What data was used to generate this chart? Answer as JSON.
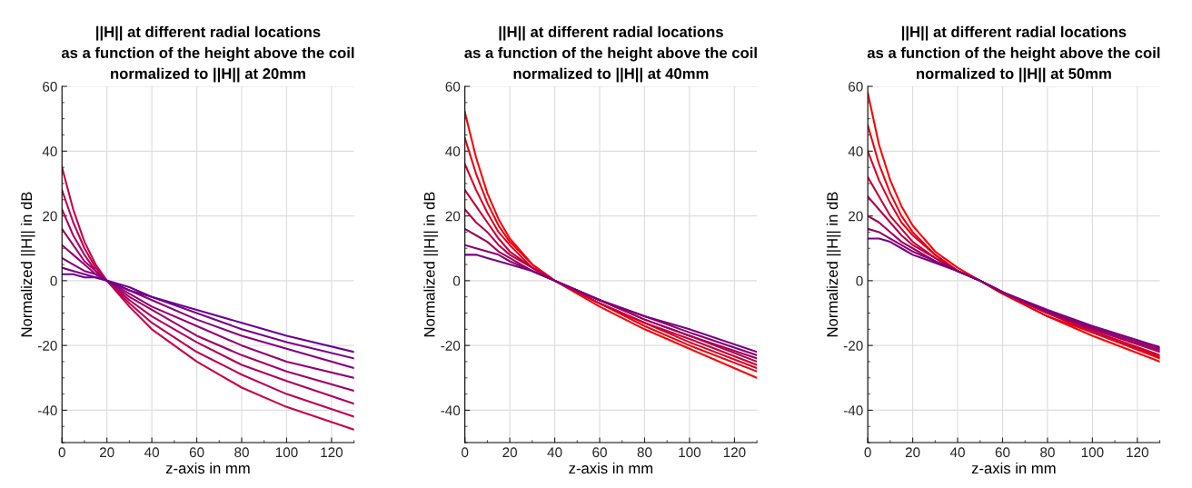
{
  "chart_data": [
    {
      "type": "line",
      "title": "||H|| at different radial locations\nas a function of the height above the coil\nnormalized to ||H|| at 20mm",
      "xlabel": "z-axis in mm",
      "ylabel": "Normalized ||H|| in dB",
      "x": [
        0,
        5,
        10,
        15,
        20,
        30,
        40,
        60,
        80,
        100,
        130
      ],
      "xlim": [
        0,
        130
      ],
      "ylim": [
        -50,
        60
      ],
      "xticks": [
        0,
        20,
        40,
        60,
        80,
        100,
        120
      ],
      "yticks": [
        -40,
        -20,
        0,
        20,
        40,
        60
      ],
      "grid": true,
      "legend": false,
      "series": [
        {
          "color": "#c8004a",
          "values": [
            35,
            22,
            12,
            5,
            0,
            -8,
            -15,
            -25,
            -33,
            -39,
            -46
          ]
        },
        {
          "color": "#bb0054",
          "values": [
            28,
            18,
            10,
            4,
            0,
            -7,
            -13,
            -22,
            -29,
            -35,
            -42
          ]
        },
        {
          "color": "#ae005e",
          "values": [
            22,
            14,
            8,
            3,
            0,
            -6,
            -11,
            -19,
            -26,
            -31,
            -38
          ]
        },
        {
          "color": "#a10068",
          "values": [
            16,
            11,
            6,
            3,
            0,
            -5,
            -9,
            -17,
            -23,
            -28,
            -34
          ]
        },
        {
          "color": "#930071",
          "values": [
            11,
            8,
            5,
            2,
            0,
            -4,
            -8,
            -14,
            -20,
            -25,
            -30
          ]
        },
        {
          "color": "#86007b",
          "values": [
            7,
            5,
            3,
            2,
            0,
            -3,
            -6,
            -12,
            -17,
            -21,
            -27
          ]
        },
        {
          "color": "#790085",
          "values": [
            4,
            3,
            2,
            1,
            0,
            -3,
            -5,
            -10,
            -15,
            -19,
            -24
          ]
        },
        {
          "color": "#6a0090",
          "values": [
            2,
            2,
            1,
            1,
            0,
            -2,
            -5,
            -9,
            -13,
            -17,
            -22
          ]
        }
      ]
    },
    {
      "type": "line",
      "title": "||H|| at different radial locations\nas a function of the height above the coil\nnormalized to ||H|| at 40mm",
      "xlabel": "z-axis in mm",
      "ylabel": "Normalized ||H|| in dB",
      "x": [
        0,
        5,
        10,
        15,
        20,
        30,
        40,
        60,
        80,
        100,
        130
      ],
      "xlim": [
        0,
        130
      ],
      "ylim": [
        -50,
        60
      ],
      "xticks": [
        0,
        20,
        40,
        60,
        80,
        100,
        120
      ],
      "yticks": [
        -40,
        -20,
        0,
        20,
        40,
        60
      ],
      "grid": true,
      "legend": false,
      "series": [
        {
          "color": "#ff0000",
          "values": [
            52,
            38,
            27,
            19,
            13,
            5,
            0,
            -8,
            -15,
            -21,
            -30
          ]
        },
        {
          "color": "#ec0012",
          "values": [
            44,
            33,
            24,
            17,
            12,
            5,
            0,
            -7,
            -14,
            -20,
            -28
          ]
        },
        {
          "color": "#d90025",
          "values": [
            36,
            28,
            21,
            15,
            11,
            4,
            0,
            -7,
            -13,
            -19,
            -27
          ]
        },
        {
          "color": "#c60037",
          "values": [
            28,
            23,
            18,
            13,
            9,
            4,
            0,
            -7,
            -13,
            -18,
            -26
          ]
        },
        {
          "color": "#b30049",
          "values": [
            22,
            18,
            15,
            11,
            8,
            4,
            0,
            -6,
            -12,
            -17,
            -25
          ]
        },
        {
          "color": "#a0005b",
          "values": [
            16,
            14,
            12,
            9,
            7,
            3,
            0,
            -6,
            -12,
            -17,
            -24
          ]
        },
        {
          "color": "#8d006e",
          "values": [
            11,
            10,
            9,
            8,
            6,
            3,
            0,
            -6,
            -11,
            -16,
            -23
          ]
        },
        {
          "color": "#7a0080",
          "values": [
            8,
            8,
            7,
            6,
            5,
            3,
            0,
            -6,
            -11,
            -15,
            -22
          ]
        }
      ]
    },
    {
      "type": "line",
      "title": "||H|| at different radial locations\nas a function of the height above the coil\nnormalized to ||H|| at 50mm",
      "xlabel": "z-axis in mm",
      "ylabel": "Normalized ||H|| in dB",
      "x": [
        0,
        5,
        10,
        15,
        20,
        30,
        40,
        50,
        60,
        80,
        100,
        130
      ],
      "xlim": [
        0,
        130
      ],
      "ylim": [
        -50,
        60
      ],
      "xticks": [
        0,
        20,
        40,
        60,
        80,
        100,
        120
      ],
      "yticks": [
        -40,
        -20,
        0,
        20,
        40,
        60
      ],
      "grid": true,
      "legend": false,
      "series": [
        {
          "color": "#ff0000",
          "values": [
            58,
            42,
            31,
            23,
            17,
            9,
            4,
            0,
            -4,
            -11,
            -17,
            -25
          ]
        },
        {
          "color": "#ec0012",
          "values": [
            48,
            36,
            27,
            20,
            15,
            8,
            3,
            0,
            -4,
            -11,
            -16,
            -24
          ]
        },
        {
          "color": "#d90025",
          "values": [
            40,
            31,
            24,
            18,
            14,
            8,
            3,
            0,
            -4,
            -10,
            -16,
            -23.5
          ]
        },
        {
          "color": "#c60037",
          "values": [
            32,
            26,
            20,
            16,
            12,
            7,
            3,
            0,
            -3.5,
            -10,
            -15.5,
            -23
          ]
        },
        {
          "color": "#b30049",
          "values": [
            26,
            22,
            18,
            14,
            11,
            7,
            3,
            0,
            -3.5,
            -10,
            -15,
            -22
          ]
        },
        {
          "color": "#a0005b",
          "values": [
            20,
            18,
            15,
            12,
            10,
            6,
            3,
            0,
            -3.5,
            -9.5,
            -15,
            -21.5
          ]
        },
        {
          "color": "#8d006e",
          "values": [
            16,
            15,
            13,
            11,
            9,
            6,
            3,
            0,
            -3.5,
            -9.5,
            -14.5,
            -21
          ]
        },
        {
          "color": "#7a0080",
          "values": [
            13,
            13,
            12,
            10,
            8,
            5.5,
            3,
            0,
            -3.5,
            -9,
            -14,
            -20.5
          ]
        }
      ]
    }
  ]
}
